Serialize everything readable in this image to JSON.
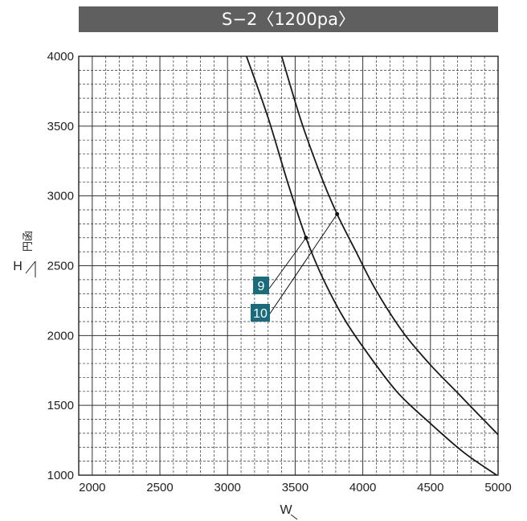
{
  "chart_data": {
    "type": "line",
    "title": "S−2〈1200pa〉",
    "xlabel": "W",
    "ylabel": "H",
    "ylabel_unit": "円函",
    "xlim": [
      1900,
      5000
    ],
    "ylim": [
      1000,
      4000
    ],
    "x_ticks": [
      "2000",
      "2500",
      "3000",
      "3500",
      "4000",
      "4500",
      "5000"
    ],
    "y_ticks": [
      "1000",
      "1500",
      "2000",
      "2500",
      "3000",
      "3500",
      "4000"
    ],
    "grid": true,
    "series": [
      {
        "name": "9",
        "points": [
          [
            3140,
            4000
          ],
          [
            3300,
            3560
          ],
          [
            3450,
            3080
          ],
          [
            3580,
            2700
          ],
          [
            3700,
            2420
          ],
          [
            3850,
            2140
          ],
          [
            4000,
            1920
          ],
          [
            4250,
            1600
          ],
          [
            4500,
            1370
          ],
          [
            4750,
            1160
          ],
          [
            4990,
            1000
          ]
        ]
      },
      {
        "name": "10",
        "points": [
          [
            3400,
            4000
          ],
          [
            3550,
            3520
          ],
          [
            3700,
            3120
          ],
          [
            3810,
            2870
          ],
          [
            3950,
            2600
          ],
          [
            4100,
            2320
          ],
          [
            4300,
            2020
          ],
          [
            4500,
            1790
          ],
          [
            4700,
            1590
          ],
          [
            4850,
            1440
          ],
          [
            5000,
            1290
          ]
        ]
      }
    ],
    "annotations": [
      {
        "label": "9",
        "point": [
          3580,
          2700
        ]
      },
      {
        "label": "10",
        "point": [
          3810,
          2870
        ]
      }
    ],
    "colors": {
      "title_bar": "#5f5f5f",
      "label_box": "#1a6b7c",
      "line": "#1a1a1a",
      "grid": "#333333"
    }
  }
}
